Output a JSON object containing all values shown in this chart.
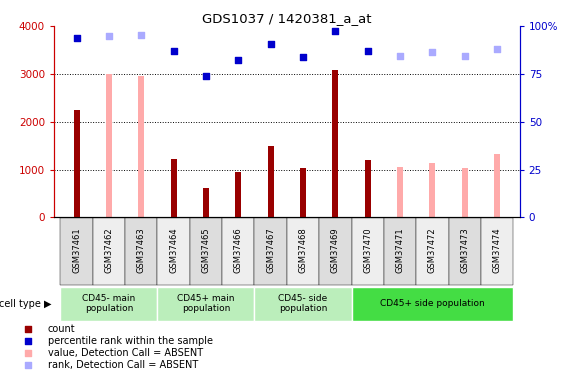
{
  "title": "GDS1037 / 1420381_a_at",
  "samples": [
    "GSM37461",
    "GSM37462",
    "GSM37463",
    "GSM37464",
    "GSM37465",
    "GSM37466",
    "GSM37467",
    "GSM37468",
    "GSM37469",
    "GSM37470",
    "GSM37471",
    "GSM37472",
    "GSM37473",
    "GSM37474"
  ],
  "count_values": [
    2250,
    null,
    null,
    1230,
    620,
    960,
    1500,
    1040,
    3080,
    1210,
    null,
    null,
    null,
    null
  ],
  "absent_value_values": [
    null,
    3000,
    2950,
    null,
    null,
    null,
    null,
    null,
    null,
    null,
    1050,
    1150,
    1030,
    1320
  ],
  "rank_present_values": [
    3750,
    null,
    null,
    3480,
    2950,
    3300,
    3620,
    3360,
    3900,
    3480,
    null,
    null,
    null,
    null
  ],
  "rank_absent_values": [
    null,
    3800,
    3820,
    null,
    null,
    null,
    null,
    null,
    null,
    null,
    3380,
    3460,
    3380,
    3520
  ],
  "count_color": "#990000",
  "absent_value_color": "#ffaaaa",
  "rank_present_color": "#0000cc",
  "rank_absent_color": "#aaaaff",
  "ylim_left": [
    0,
    4000
  ],
  "ylim_right": [
    0,
    100
  ],
  "yticks_left": [
    0,
    1000,
    2000,
    3000,
    4000
  ],
  "yticks_right": [
    0,
    25,
    50,
    75,
    100
  ],
  "ytick_labels_right": [
    "0",
    "25",
    "50",
    "75",
    "100%"
  ],
  "cell_groups": [
    {
      "label": "CD45- main\npopulation",
      "start": 0,
      "end": 3,
      "color": "#bbeebb"
    },
    {
      "label": "CD45+ main\npopulation",
      "start": 3,
      "end": 6,
      "color": "#bbeebb"
    },
    {
      "label": "CD45- side\npopulation",
      "start": 6,
      "end": 9,
      "color": "#bbeebb"
    },
    {
      "label": "CD45+ side population",
      "start": 9,
      "end": 14,
      "color": "#44dd44"
    }
  ],
  "legend_items": [
    {
      "label": "count",
      "color": "#990000",
      "marker": "s"
    },
    {
      "label": "percentile rank within the sample",
      "color": "#0000cc",
      "marker": "s"
    },
    {
      "label": "value, Detection Call = ABSENT",
      "color": "#ffaaaa",
      "marker": "s"
    },
    {
      "label": "rank, Detection Call = ABSENT",
      "color": "#aaaaff",
      "marker": "s"
    }
  ],
  "bar_width": 0.18,
  "cell_type_label": "cell type",
  "background_color": "#ffffff",
  "tick_color_left": "#cc0000",
  "tick_color_right": "#0000cc",
  "tick_bg_even": "#dddddd",
  "tick_bg_odd": "#eeeeee"
}
